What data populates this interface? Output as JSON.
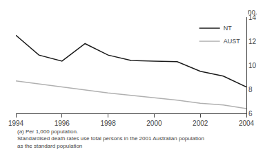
{
  "chart_data": {
    "type": "line",
    "x": [
      1994,
      1995,
      1996,
      1997,
      1998,
      1999,
      2000,
      2001,
      2002,
      2003,
      2004
    ],
    "series": [
      {
        "name": "NT",
        "color": "#1a1a1a",
        "values": [
          12.5,
          10.85,
          10.35,
          11.8,
          10.85,
          10.4,
          10.35,
          10.3,
          9.5,
          9.1,
          8.2
        ]
      },
      {
        "name": "AUST",
        "color": "#b0b0b0",
        "values": [
          8.7,
          8.45,
          8.2,
          7.95,
          7.7,
          7.5,
          7.3,
          7.1,
          6.85,
          6.7,
          6.4
        ]
      }
    ],
    "xlim": [
      1994,
      2004
    ],
    "xticks": [
      1994,
      1996,
      1998,
      2000,
      2002,
      2004
    ],
    "ylim": [
      6,
      14
    ],
    "yticks": [
      6,
      8,
      10,
      12,
      14
    ],
    "ylabel": "no.",
    "annotations": [
      "(a) Per 1,000 population.",
      "Standardised death rates use total persons in the 2001 Australian population",
      "as the standard population"
    ],
    "legend": "upper right",
    "grid": false
  }
}
